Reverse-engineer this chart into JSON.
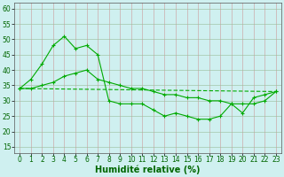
{
  "xlabel": "Humidité relative (%)",
  "bg_color": "#cff0f0",
  "grid_color": "#aaccaa",
  "line_color": "#00aa00",
  "xlim": [
    -0.5,
    23.5
  ],
  "ylim": [
    13,
    62
  ],
  "yticks": [
    15,
    20,
    25,
    30,
    35,
    40,
    45,
    50,
    55,
    60
  ],
  "xticks": [
    0,
    1,
    2,
    3,
    4,
    5,
    6,
    7,
    8,
    9,
    10,
    11,
    12,
    13,
    14,
    15,
    16,
    17,
    18,
    19,
    20,
    21,
    22,
    23
  ],
  "series1_x": [
    0,
    1,
    2,
    3,
    4,
    5,
    6,
    7,
    8,
    9,
    10,
    11,
    12,
    13,
    14,
    15,
    16,
    17,
    18,
    19,
    20,
    21,
    22,
    23
  ],
  "series1_y": [
    34,
    37,
    42,
    48,
    51,
    47,
    48,
    45,
    30,
    29,
    29,
    29,
    27,
    25,
    26,
    25,
    24,
    24,
    25,
    29,
    26,
    31,
    32,
    33
  ],
  "series2_x": [
    0,
    1,
    2,
    3,
    4,
    5,
    6,
    7,
    8,
    9,
    10,
    11,
    12,
    13,
    14,
    15,
    16,
    17,
    18,
    19,
    20,
    21,
    22,
    23
  ],
  "series2_y": [
    34,
    34,
    35,
    36,
    38,
    39,
    40,
    37,
    36,
    35,
    34,
    34,
    33,
    32,
    32,
    31,
    31,
    30,
    30,
    29,
    29,
    29,
    30,
    33
  ],
  "series3_x": [
    0,
    23
  ],
  "series3_y": [
    34,
    33
  ],
  "xlabel_fontsize": 7,
  "tick_fontsize": 5.5
}
